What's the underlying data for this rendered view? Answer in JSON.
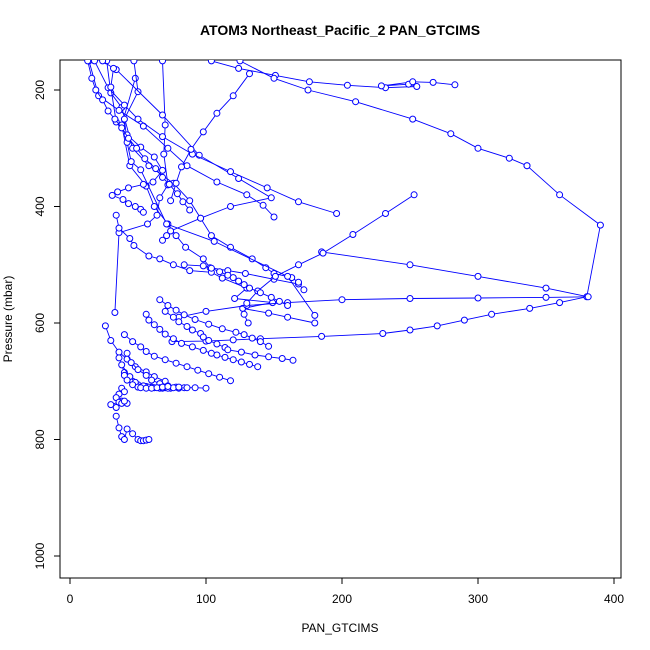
{
  "chart_data": {
    "type": "line",
    "title": "ATOM3 Northeast_Pacific_2 PAN_GTCIMS",
    "xlabel": "PAN_GTCIMS",
    "ylabel": "Pressure (mbar)",
    "xlim": [
      0,
      400
    ],
    "ylim": [
      1000,
      150
    ],
    "y_reversed": true,
    "x_ticks": [
      0,
      100,
      200,
      300,
      400
    ],
    "y_ticks": [
      200,
      400,
      600,
      800,
      1000
    ],
    "marker": "open-circle",
    "grid": false,
    "legend": "none",
    "colors": {
      "series": "#0000ff",
      "axis": "#000000",
      "background": "#ffffff"
    },
    "series": [
      {
        "x": [
          68,
          70,
          69,
          72,
          66,
          64,
          57,
          36,
          33
        ],
        "y": [
          150,
          260,
          310,
          363,
          385,
          415,
          430,
          445,
          582
        ]
      },
      {
        "x": [
          48,
          38,
          44,
          56,
          62,
          72,
          78,
          85,
          98,
          103,
          116,
          129,
          150,
          168,
          172
        ],
        "y": [
          180,
          260,
          330,
          365,
          400,
          430,
          450,
          470,
          490,
          505,
          510,
          515,
          525,
          533,
          543
        ]
      },
      {
        "x": [
          27,
          30,
          38,
          46,
          58,
          76,
          88,
          96,
          104,
          118,
          134,
          144,
          150,
          163,
          168
        ],
        "y": [
          150,
          205,
          230,
          300,
          330,
          360,
          390,
          420,
          450,
          470,
          490,
          505,
          515,
          522,
          530
        ]
      },
      {
        "x": [
          47,
          50,
          40,
          42,
          45,
          52,
          71,
          106,
          160,
          180
        ],
        "y": [
          150,
          203,
          250,
          290,
          323,
          337,
          430,
          460,
          520,
          587
        ]
      },
      {
        "x": [
          34,
          68,
          95,
          124,
          148,
          118,
          96,
          74,
          71,
          68
        ],
        "y": [
          165,
          243,
          312,
          352,
          385,
          400,
          420,
          442,
          450,
          458
        ]
      },
      {
        "x": [
          14,
          21,
          36,
          54,
          72,
          86,
          108,
          130,
          142,
          150
        ],
        "y": [
          150,
          210,
          235,
          262,
          300,
          330,
          358,
          380,
          398,
          418
        ]
      },
      {
        "x": [
          18,
          28,
          40,
          50,
          68,
          90,
          118,
          145,
          168,
          196
        ],
        "y": [
          150,
          196,
          226,
          250,
          280,
          310,
          340,
          368,
          392,
          412
        ]
      },
      {
        "x": [
          24,
          32,
          30,
          34,
          42,
          52,
          62,
          68,
          61,
          54,
          43,
          35,
          31,
          39,
          43,
          48,
          52,
          54
        ],
        "y": [
          150,
          163,
          195,
          255,
          277,
          298,
          315,
          338,
          358,
          362,
          368,
          375,
          381,
          388,
          395,
          400,
          405,
          410
        ]
      },
      {
        "x": [
          13,
          16,
          19,
          24,
          28,
          33,
          38,
          43,
          49,
          55,
          63,
          68,
          73,
          79,
          83,
          88
        ],
        "y": [
          150,
          180,
          200,
          217,
          236,
          250,
          265,
          283,
          300,
          318,
          335,
          350,
          362,
          378,
          392,
          406
        ]
      },
      {
        "x": [
          34,
          36,
          44,
          47,
          58,
          66,
          76,
          88,
          104,
          112,
          130,
          121,
          149,
          127,
          146,
          160,
          180
        ],
        "y": [
          415,
          437,
          455,
          467,
          485,
          490,
          500,
          510,
          513,
          523,
          540,
          558,
          565,
          575,
          583,
          590,
          600
        ]
      },
      {
        "x": [
          104,
          124,
          151,
          176,
          204,
          232,
          255,
          249,
          229,
          252,
          267,
          283
        ],
        "y": [
          150,
          163,
          175,
          186,
          192,
          196,
          194,
          190,
          193,
          186,
          187,
          191
        ]
      },
      {
        "x": [
          125,
          150,
          175,
          210,
          252,
          280,
          300,
          323,
          336
        ],
        "y": [
          150,
          180,
          200,
          220,
          250,
          275,
          300,
          317,
          330
        ]
      },
      {
        "x": [
          336,
          360,
          390,
          380,
          360,
          338,
          310,
          290,
          270,
          250,
          230,
          185,
          140,
          120,
          100,
          75
        ],
        "y": [
          330,
          380,
          432,
          555,
          565,
          575,
          585,
          595,
          605,
          612,
          618,
          623,
          627,
          629,
          631,
          632
        ]
      },
      {
        "x": [
          185,
          250,
          300,
          350,
          381,
          350,
          300,
          250,
          200,
          160,
          130,
          100,
          80
        ],
        "y": [
          478,
          500,
          520,
          540,
          555,
          556,
          557,
          558,
          560,
          565,
          570,
          580,
          590
        ]
      },
      {
        "x": [
          253,
          232,
          208,
          186,
          168,
          151,
          138,
          130,
          128,
          131
        ],
        "y": [
          380,
          412,
          448,
          480,
          500,
          520,
          545,
          566,
          585,
          600
        ]
      },
      {
        "x": [
          132,
          120,
          108,
          98,
          89,
          82,
          78,
          74
        ],
        "y": [
          172,
          210,
          240,
          272,
          302,
          332,
          360,
          390
        ]
      },
      {
        "x": [
          84,
          98,
          104,
          110,
          116,
          120,
          124,
          128,
          132,
          140,
          148,
          154,
          160
        ],
        "y": [
          500,
          502,
          506,
          512,
          518,
          522,
          528,
          534,
          540,
          548,
          556,
          563,
          570
        ]
      },
      {
        "x": [
          70,
          76,
          80,
          86,
          90,
          96,
          98,
          102,
          108,
          114,
          116,
          126,
          136,
          146,
          156,
          164
        ],
        "y": [
          580,
          590,
          598,
          606,
          612,
          618,
          624,
          630,
          636,
          642,
          646,
          650,
          655,
          658,
          661,
          664
        ]
      },
      {
        "x": [
          66,
          72,
          78,
          84,
          92,
          102,
          112,
          122,
          128,
          134,
          140,
          146
        ],
        "y": [
          560,
          570,
          578,
          586,
          594,
          602,
          610,
          616,
          620,
          626,
          632,
          640
        ]
      },
      {
        "x": [
          56,
          58,
          62,
          66,
          70,
          76,
          82,
          90,
          98,
          104,
          108,
          114,
          120,
          126,
          132,
          138
        ],
        "y": [
          585,
          595,
          603,
          611,
          619,
          627,
          635,
          641,
          647,
          652,
          655,
          659,
          663,
          667,
          671,
          675
        ]
      },
      {
        "x": [
          40,
          46,
          52,
          56,
          62,
          70,
          78,
          86,
          94,
          102,
          110,
          118
        ],
        "y": [
          620,
          632,
          641,
          649,
          657,
          663,
          669,
          675,
          681,
          687,
          693,
          699
        ]
      },
      {
        "x": [
          26,
          30,
          36,
          42,
          48,
          56,
          62,
          70
        ],
        "y": [
          605,
          630,
          650,
          662,
          675,
          684,
          692,
          700
        ]
      },
      {
        "x": [
          42,
          45,
          50,
          56,
          60,
          66,
          72,
          78,
          84,
          92,
          100
        ],
        "y": [
          652,
          668,
          680,
          690,
          698,
          704,
          708,
          710,
          711,
          711,
          712
        ]
      },
      {
        "x": [
          36,
          40,
          46,
          50,
          56,
          60,
          66,
          70,
          74,
          80,
          86
        ],
        "y": [
          660,
          685,
          700,
          706,
          709,
          710,
          711,
          711,
          712,
          712,
          711
        ]
      },
      {
        "x": [
          38,
          44,
          48,
          54,
          58,
          62,
          66,
          68,
          72,
          76,
          80
        ],
        "y": [
          672,
          692,
          702,
          708,
          710,
          711,
          712,
          712,
          712,
          711,
          710
        ]
      },
      {
        "x": [
          40,
          42,
          46,
          50,
          52,
          56,
          60,
          64,
          68,
          72
        ],
        "y": [
          690,
          698,
          706,
          710,
          711,
          712,
          712,
          711,
          710,
          709
        ]
      },
      {
        "x": [
          38,
          40,
          36,
          34,
          38,
          42,
          36,
          30,
          34,
          38,
          40
        ],
        "y": [
          712,
          718,
          722,
          728,
          734,
          738,
          736,
          740,
          745,
          738,
          734
        ]
      },
      {
        "x": [
          34,
          36,
          38,
          40,
          42,
          46,
          50,
          52,
          54,
          56,
          58
        ],
        "y": [
          760,
          780,
          795,
          800,
          782,
          790,
          800,
          802,
          802,
          801,
          800
        ]
      }
    ]
  }
}
